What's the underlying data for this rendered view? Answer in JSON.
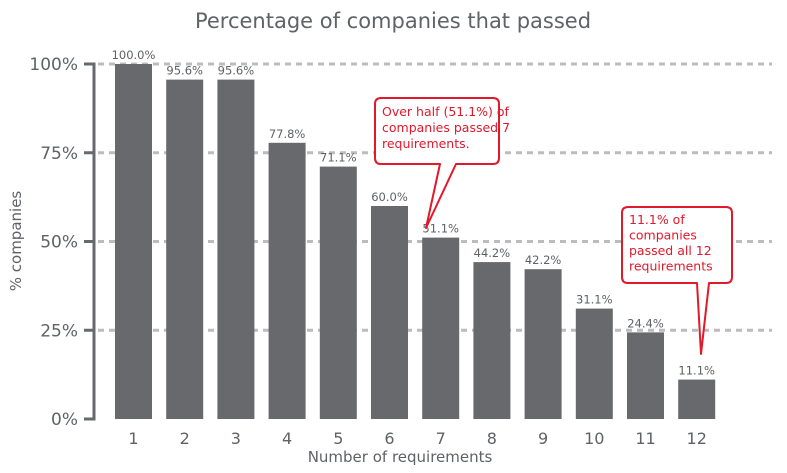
{
  "chart_data": {
    "type": "bar",
    "title": "Percentage of companies that passed",
    "xlabel": "Number of requirements",
    "ylabel": "% companies",
    "categories": [
      "1",
      "2",
      "3",
      "4",
      "5",
      "6",
      "7",
      "8",
      "9",
      "10",
      "11",
      "12"
    ],
    "values": [
      100.0,
      95.6,
      95.6,
      77.8,
      71.1,
      60.0,
      51.1,
      44.2,
      42.2,
      31.1,
      24.4,
      11.1
    ],
    "data_labels": [
      "100.0%",
      "95.6%",
      "95.6%",
      "77.8%",
      "71.1%",
      "60.0%",
      "51.1%",
      "44.2%",
      "42.2%",
      "31.1%",
      "24.4%",
      "11.1%"
    ],
    "ylim": [
      0,
      100
    ],
    "yticks": [
      0,
      25,
      50,
      75,
      100
    ],
    "ytick_labels": [
      "0%",
      "25%",
      "50%",
      "75%",
      "100%"
    ],
    "grid": "horizontal dashed",
    "legend": "none",
    "annotations": [
      {
        "target_category": "7",
        "lines": [
          "Over half (51.1%) of",
          "companies passed 7",
          "requirements."
        ]
      },
      {
        "target_category": "12",
        "lines": [
          "11.1% of",
          "companies",
          "passed all 12",
          "requirements"
        ]
      }
    ],
    "colors": {
      "bar": "#67696c",
      "axis": "#67696c",
      "grid": "#bcbcbc",
      "text": "#5f6266",
      "callout": "#e0192b"
    }
  }
}
